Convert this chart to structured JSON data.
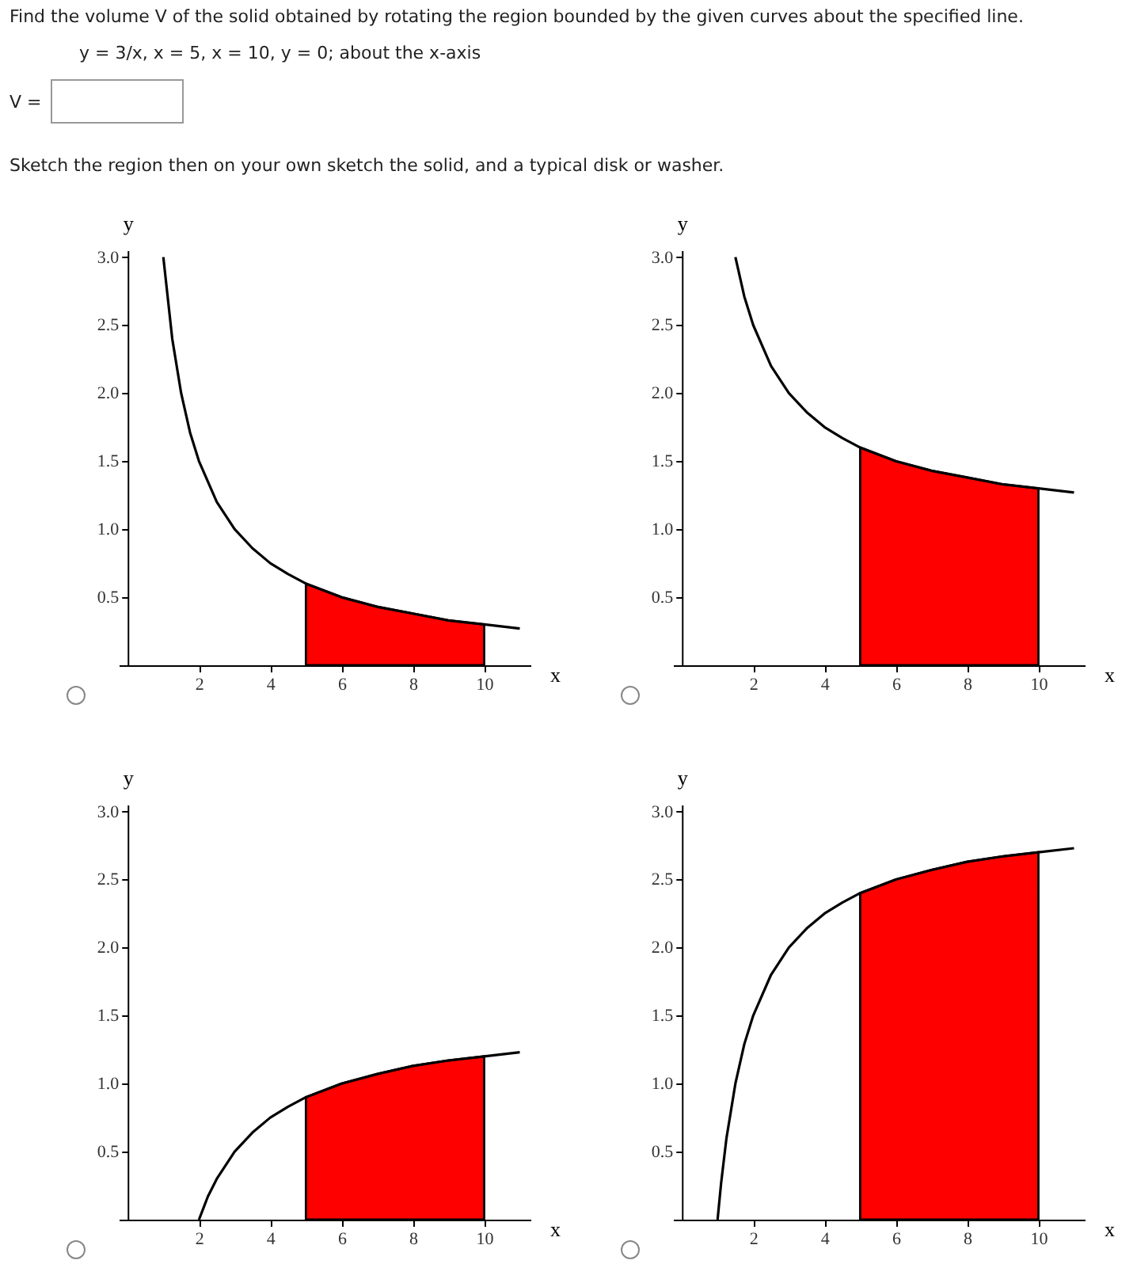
{
  "chart_data": [
    {
      "type": "other",
      "title": "Find the volume V of the solid obtained by rotating the region bounded by the given curves about the specified line.",
      "annotations": [
        "y = 3/x,   x = 5,   x = 10,   y = 0;    about the x-axis",
        "V =",
        "Sketch the region then on your own sketch the solid, and a typical disk or washer."
      ]
    },
    {
      "type": "line",
      "xlabel": "x",
      "ylabel": "y",
      "xlim": [
        -0.25,
        11.3
      ],
      "ylim": [
        0,
        3.05
      ],
      "xticks": [
        2,
        4,
        6,
        8,
        10
      ],
      "yticks": [
        0.5,
        {
          "value": 1,
          "label": "1.0"
        },
        1.5,
        {
          "value": 2,
          "label": "2.0"
        },
        2.5,
        {
          "value": 3,
          "label": "3.0"
        }
      ],
      "series": [
        {
          "type": "line",
          "color": "#000000",
          "x": [
            1,
            1.25,
            1.5,
            1.75,
            2,
            2.5,
            3,
            3.5,
            4,
            4.5,
            5,
            6,
            7,
            8,
            9,
            10,
            11
          ],
          "values": [
            3,
            2.4,
            2,
            1.71,
            1.5,
            1.2,
            1,
            0.86,
            0.75,
            0.67,
            0.6,
            0.5,
            0.43,
            0.38,
            0.33,
            0.3,
            0.27
          ]
        },
        {
          "type": "area",
          "color": "#ff0000",
          "x": [
            5,
            6,
            7,
            8,
            9,
            10
          ],
          "values": [
            0.6,
            0.5,
            0.43,
            0.38,
            0.33,
            0.3
          ]
        }
      ]
    },
    {
      "type": "line",
      "xlabel": "x",
      "ylabel": "y",
      "xlim": [
        -0.25,
        11.3
      ],
      "ylim": [
        0,
        3.05
      ],
      "xticks": [
        2,
        4,
        6,
        8,
        10
      ],
      "yticks": [
        0.5,
        {
          "value": 1,
          "label": "1.0"
        },
        1.5,
        {
          "value": 2,
          "label": "2.0"
        },
        2.5,
        {
          "value": 3,
          "label": "3.0"
        }
      ],
      "series": [
        {
          "type": "line",
          "color": "#000000",
          "x": [
            1.5,
            1.75,
            2,
            2.5,
            3,
            3.5,
            4,
            4.5,
            5,
            6,
            7,
            8,
            9,
            10,
            11
          ],
          "values": [
            3,
            2.71,
            2.5,
            2.2,
            2,
            1.86,
            1.75,
            1.67,
            1.6,
            1.5,
            1.43,
            1.38,
            1.33,
            1.3,
            1.27
          ]
        },
        {
          "type": "area",
          "color": "#ff0000",
          "x": [
            5,
            6,
            7,
            8,
            9,
            10
          ],
          "values": [
            1.6,
            1.5,
            1.43,
            1.38,
            1.33,
            1.3
          ]
        }
      ]
    },
    {
      "type": "line",
      "xlabel": "x",
      "ylabel": "y",
      "xlim": [
        -0.25,
        11.3
      ],
      "ylim": [
        0,
        3.05
      ],
      "xticks": [
        2,
        4,
        6,
        8,
        10
      ],
      "yticks": [
        0.5,
        {
          "value": 1,
          "label": "1.0"
        },
        1.5,
        {
          "value": 2,
          "label": "2.0"
        },
        2.5,
        {
          "value": 3,
          "label": "3.0"
        }
      ],
      "series": [
        {
          "type": "line",
          "color": "#000000",
          "x": [
            2,
            2.25,
            2.5,
            3,
            3.5,
            4,
            4.5,
            5,
            6,
            7,
            8,
            9,
            10,
            11
          ],
          "values": [
            0,
            0.17,
            0.3,
            0.5,
            0.64,
            0.75,
            0.83,
            0.9,
            1,
            1.07,
            1.13,
            1.17,
            1.2,
            1.23
          ]
        },
        {
          "type": "area",
          "color": "#ff0000",
          "x": [
            5,
            6,
            7,
            8,
            9,
            10
          ],
          "values": [
            0.9,
            1,
            1.07,
            1.13,
            1.17,
            1.2
          ]
        }
      ]
    },
    {
      "type": "line",
      "xlabel": "x",
      "ylabel": "y",
      "xlim": [
        -0.25,
        11.3
      ],
      "ylim": [
        0,
        3.05
      ],
      "xticks": [
        2,
        4,
        6,
        8,
        10
      ],
      "yticks": [
        0.5,
        {
          "value": 1,
          "label": "1.0"
        },
        1.5,
        {
          "value": 2,
          "label": "2.0"
        },
        2.5,
        {
          "value": 3,
          "label": "3.0"
        }
      ],
      "series": [
        {
          "type": "line",
          "color": "#000000",
          "x": [
            1,
            1.1,
            1.25,
            1.5,
            1.75,
            2,
            2.5,
            3,
            3.5,
            4,
            4.5,
            5,
            6,
            7,
            8,
            9,
            10,
            11
          ],
          "values": [
            0,
            0.27,
            0.6,
            1,
            1.29,
            1.5,
            1.8,
            2,
            2.14,
            2.25,
            2.33,
            2.4,
            2.5,
            2.57,
            2.63,
            2.67,
            2.7,
            2.73
          ]
        },
        {
          "type": "area",
          "color": "#ff0000",
          "x": [
            5,
            6,
            7,
            8,
            9,
            10
          ],
          "values": [
            2.4,
            2.5,
            2.57,
            2.63,
            2.67,
            2.7
          ]
        }
      ]
    }
  ]
}
